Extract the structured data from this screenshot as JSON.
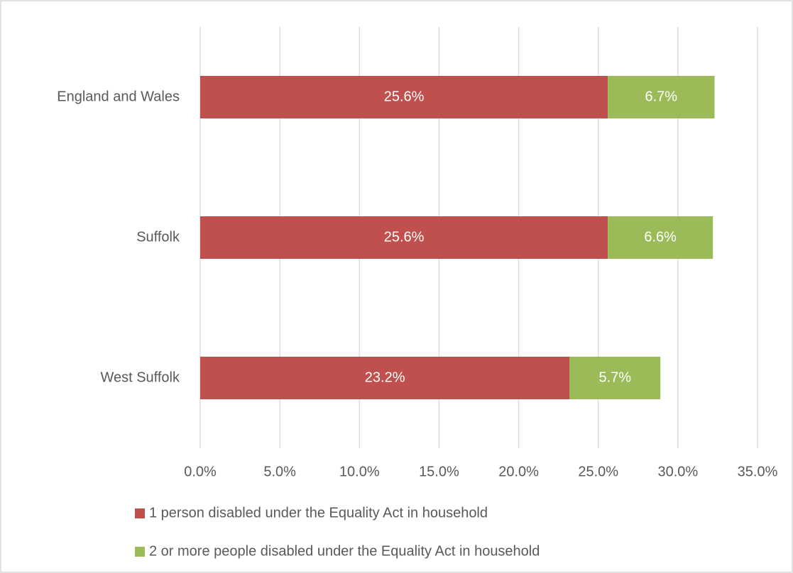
{
  "chart_data": {
    "type": "stacked_bar_horizontal",
    "categories": [
      "England and Wales",
      "Suffolk",
      "West Suffolk"
    ],
    "series": [
      {
        "name": "1 person disabled under the Equality Act in household",
        "color": "#c0504d",
        "values": [
          25.6,
          25.6,
          23.2
        ],
        "value_labels": [
          "25.6%",
          "25.6%",
          "23.2%"
        ]
      },
      {
        "name": "2 or more people disabled under the Equality Act in household",
        "color": "#9bbb59",
        "values": [
          6.7,
          6.6,
          5.7
        ],
        "value_labels": [
          "6.7%",
          "6.6%",
          "5.7%"
        ]
      }
    ],
    "xlim": [
      0,
      35
    ],
    "xticks": [
      {
        "value": 0,
        "label": "0.0%"
      },
      {
        "value": 5,
        "label": "5.0%"
      },
      {
        "value": 10,
        "label": "10.0%"
      },
      {
        "value": 15,
        "label": "15.0%"
      },
      {
        "value": 20,
        "label": "20.0%"
      },
      {
        "value": 25,
        "label": "25.0%"
      },
      {
        "value": 30,
        "label": "30.0%"
      },
      {
        "value": 35,
        "label": "35.0%"
      }
    ],
    "grid": true,
    "legend": "bottom"
  }
}
